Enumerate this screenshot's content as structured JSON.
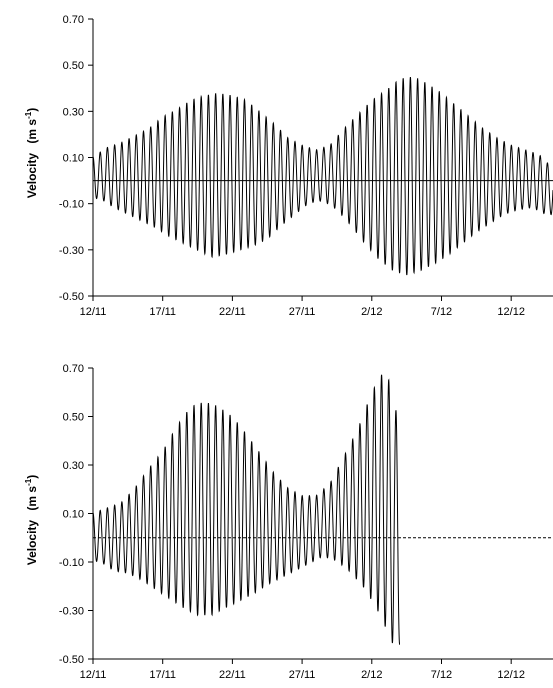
{
  "chart_data": [
    {
      "type": "line",
      "title": "",
      "xlabel": "",
      "ylabel": "Velocity",
      "ylabel_unit_base": "(m s",
      "ylabel_unit_exp": "-1",
      "ylabel_unit_close": ")",
      "ylim": [
        -0.5,
        0.7
      ],
      "yticks": [
        -0.5,
        -0.3,
        -0.1,
        0.1,
        0.3,
        0.5,
        0.7
      ],
      "ytick_labels": [
        "-0.50",
        "-0.30",
        "-0.10",
        "0.10",
        "0.30",
        "0.50",
        "0.70"
      ],
      "xlim": [
        "2011-11-12",
        "2011-12-15"
      ],
      "xtick_labels": [
        "12/11",
        "17/11",
        "22/11",
        "27/11",
        "2/12",
        "7/12",
        "12/12"
      ],
      "xtick_dates": [
        "2011-11-12",
        "2011-11-17",
        "2011-11-22",
        "2011-11-27",
        "2011-12-02",
        "2011-12-07",
        "2011-12-12"
      ],
      "reference_line": {
        "y": 0.0,
        "style": "solid"
      },
      "series": [
        {
          "x": [
            "2011-11-12",
            "2011-11-12",
            "2011-11-13",
            "2011-11-13",
            "2011-11-14",
            "2011-11-14",
            "2011-11-15",
            "2011-11-15",
            "2011-11-16",
            "2011-11-16",
            "2011-11-17",
            "2011-11-17",
            "2011-11-18",
            "2011-11-18",
            "2011-11-19",
            "2011-11-19",
            "2011-11-20",
            "2011-11-20",
            "2011-11-21",
            "2011-11-21",
            "2011-11-22",
            "2011-11-22",
            "2011-11-23",
            "2011-11-23",
            "2011-11-24",
            "2011-11-24",
            "2011-11-25",
            "2011-11-25",
            "2011-11-26",
            "2011-11-26",
            "2011-11-27",
            "2011-11-27",
            "2011-11-28",
            "2011-11-28",
            "2011-11-29",
            "2011-11-29",
            "2011-11-30",
            "2011-11-30",
            "2011-12-01",
            "2011-12-01",
            "2011-12-02",
            "2011-12-02",
            "2011-12-03",
            "2011-12-03",
            "2011-12-04",
            "2011-12-04",
            "2011-12-05",
            "2011-12-05",
            "2011-12-06",
            "2011-12-06",
            "2011-12-07",
            "2011-12-07",
            "2011-12-08",
            "2011-12-08",
            "2011-12-09",
            "2011-12-09",
            "2011-12-10",
            "2011-12-10",
            "2011-12-11",
            "2011-12-11",
            "2011-12-12",
            "2011-12-12",
            "2011-12-13",
            "2011-12-13",
            "2011-12-14",
            "2011-12-14",
            "2011-12-15"
          ],
          "y": [
            0.1,
            -0.08,
            0.14,
            -0.12,
            0.16,
            -0.15,
            0.19,
            -0.18,
            0.22,
            -0.21,
            0.27,
            -0.25,
            0.3,
            -0.28,
            0.34,
            -0.31,
            0.36,
            -0.34,
            0.37,
            -0.33,
            0.36,
            -0.31,
            0.34,
            -0.29,
            0.29,
            -0.26,
            0.24,
            -0.2,
            0.18,
            -0.15,
            0.15,
            -0.1,
            0.13,
            -0.09,
            0.15,
            -0.13,
            0.22,
            -0.2,
            0.28,
            -0.28,
            0.34,
            -0.35,
            0.38,
            -0.4,
            0.43,
            -0.42,
            0.44,
            -0.4,
            0.41,
            -0.37,
            0.37,
            -0.33,
            0.32,
            -0.28,
            0.27,
            -0.23,
            0.22,
            -0.19,
            0.18,
            -0.15,
            0.15,
            -0.13,
            0.13,
            -0.12,
            0.11,
            -0.15,
            0.05
          ]
        }
      ]
    },
    {
      "type": "line",
      "title": "",
      "xlabel": "",
      "ylabel": "Velocity",
      "ylabel_unit_base": "(m s",
      "ylabel_unit_exp": "-1",
      "ylabel_unit_close": ")",
      "ylim": [
        -0.5,
        0.7
      ],
      "yticks": [
        -0.5,
        -0.3,
        -0.1,
        0.1,
        0.3,
        0.5,
        0.7
      ],
      "ytick_labels": [
        "-0.50",
        "-0.30",
        "-0.10",
        "0.10",
        "0.30",
        "0.50",
        "0.70"
      ],
      "xlim": [
        "2011-11-12",
        "2011-12-15"
      ],
      "xtick_labels": [
        "12/11",
        "17/11",
        "22/11",
        "27/11",
        "2/12",
        "7/12",
        "12/12"
      ],
      "xtick_dates": [
        "2011-11-12",
        "2011-11-17",
        "2011-11-22",
        "2011-11-27",
        "2011-12-02",
        "2011-12-07",
        "2011-12-12"
      ],
      "reference_line": {
        "y": 0.0,
        "style": "dashed"
      },
      "series": [
        {
          "x": [
            "2011-11-12",
            "2011-11-12",
            "2011-11-13",
            "2011-11-13",
            "2011-11-14",
            "2011-11-14",
            "2011-11-15",
            "2011-11-15",
            "2011-11-16",
            "2011-11-16",
            "2011-11-17",
            "2011-11-17",
            "2011-11-18",
            "2011-11-18",
            "2011-11-19",
            "2011-11-19",
            "2011-11-20",
            "2011-11-20",
            "2011-11-21",
            "2011-11-21",
            "2011-11-22",
            "2011-11-22",
            "2011-11-23",
            "2011-11-23",
            "2011-11-24",
            "2011-11-24",
            "2011-11-25",
            "2011-11-25",
            "2011-11-26",
            "2011-11-26",
            "2011-11-27",
            "2011-11-27",
            "2011-11-28",
            "2011-11-28",
            "2011-11-29",
            "2011-11-29",
            "2011-11-30",
            "2011-11-30",
            "2011-12-01",
            "2011-12-01",
            "2011-12-02",
            "2011-12-02",
            "2011-12-03",
            "2011-12-03",
            "2011-12-04"
          ],
          "y": [
            0.1,
            -0.1,
            0.12,
            -0.14,
            0.14,
            -0.15,
            0.2,
            -0.18,
            0.28,
            -0.22,
            0.35,
            -0.26,
            0.45,
            -0.3,
            0.53,
            -0.33,
            0.55,
            -0.33,
            0.53,
            -0.3,
            0.49,
            -0.27,
            0.42,
            -0.24,
            0.34,
            -0.2,
            0.26,
            -0.17,
            0.2,
            -0.14,
            0.17,
            -0.11,
            0.17,
            -0.08,
            0.22,
            -0.1,
            0.33,
            -0.15,
            0.44,
            -0.22,
            0.59,
            -0.32,
            0.69,
            -0.45,
            0.45
          ]
        }
      ]
    }
  ]
}
